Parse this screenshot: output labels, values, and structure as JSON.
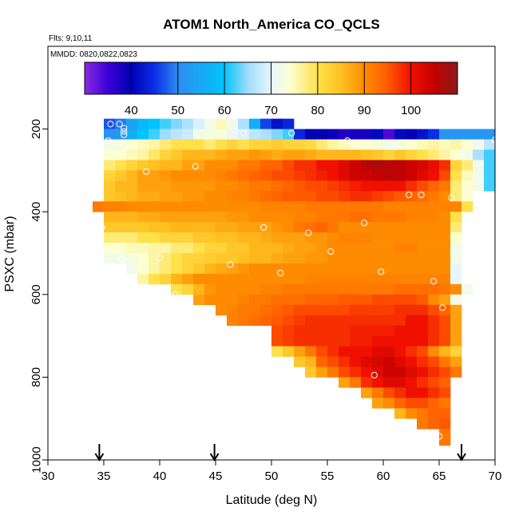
{
  "chart_data": {
    "type": "heatmap",
    "title": "ATOM1 North_America CO_QCLS",
    "flights_note": "Flts: 9,10,11",
    "dates_note": "MMDD: 0820,0822,0823",
    "xlabel": "Latitude (deg N)",
    "ylabel": "PSXC (mbar)",
    "xlim": [
      30,
      70
    ],
    "ylim": [
      1000,
      0
    ],
    "x_ticks": [
      "30",
      "35",
      "40",
      "45",
      "50",
      "55",
      "60",
      "65",
      "70"
    ],
    "y_ticks": [
      "1000",
      "800",
      "600",
      "400",
      "200"
    ],
    "colorbar": {
      "range": [
        30,
        110
      ],
      "ticks": [
        "40",
        "50",
        "60",
        "70",
        "80",
        "90",
        "100"
      ],
      "stops": [
        {
          "value": 30,
          "color": "#8a2be2"
        },
        {
          "value": 35,
          "color": "#3a00d6"
        },
        {
          "value": 40,
          "color": "#0000b4"
        },
        {
          "value": 45,
          "color": "#0a2ee6"
        },
        {
          "value": 50,
          "color": "#2e8bf0"
        },
        {
          "value": 55,
          "color": "#17a9f5"
        },
        {
          "value": 60,
          "color": "#00c4ff"
        },
        {
          "value": 65,
          "color": "#9fdcff"
        },
        {
          "value": 70,
          "color": "#e8f6ff"
        },
        {
          "value": 74,
          "color": "#fbffd2"
        },
        {
          "value": 80,
          "color": "#ffe14a"
        },
        {
          "value": 85,
          "color": "#ffc022"
        },
        {
          "value": 90,
          "color": "#ff8c00"
        },
        {
          "value": 95,
          "color": "#ff5a00"
        },
        {
          "value": 100,
          "color": "#f01000"
        },
        {
          "value": 105,
          "color": "#c40000"
        },
        {
          "value": 110,
          "color": "#8b1a1a"
        }
      ]
    },
    "lat_bin_width": 1,
    "pressure_bin_height": 25,
    "rows": [
      {
        "p_top": 175,
        "p_bot": 200,
        "lat_start": 35,
        "values": [
          47,
          49,
          54,
          58,
          60,
          62,
          64,
          66,
          69,
          72,
          75,
          72,
          66,
          56,
          46,
          42,
          44
        ]
      },
      {
        "p_top": 200,
        "p_bot": 225,
        "lat_start": 35,
        "values": [
          51,
          52,
          56,
          60,
          62,
          65,
          67,
          68,
          72,
          73,
          73,
          71,
          69,
          67,
          66,
          64,
          62,
          44,
          40,
          40,
          39,
          37,
          38,
          38,
          41,
          34,
          41,
          40,
          42,
          45,
          52,
          52,
          52,
          52,
          52,
          52,
          52,
          52,
          52,
          52
        ]
      },
      {
        "p_top": 225,
        "p_bot": 250,
        "lat_start": 35,
        "values": [
          72,
          73,
          74,
          75,
          76,
          78,
          80,
          80,
          80,
          78,
          80,
          82,
          80,
          82,
          82,
          83,
          82,
          82,
          81,
          78,
          76,
          75,
          74,
          74,
          73,
          72,
          73,
          74,
          75,
          76,
          75,
          76,
          74,
          72,
          67,
          62
        ]
      },
      {
        "p_top": 250,
        "p_bot": 275,
        "lat_start": 35,
        "values": [
          74,
          74,
          75,
          76,
          79,
          82,
          84,
          86,
          86,
          86,
          87,
          88,
          88,
          89,
          88,
          87,
          88,
          88,
          87,
          86,
          86,
          86,
          86,
          85,
          84,
          82,
          84,
          82,
          80,
          78,
          76,
          74,
          72,
          66,
          62
        ]
      },
      {
        "p_top": 275,
        "p_bot": 300,
        "lat_start": 35,
        "values": [
          78,
          80,
          82,
          84,
          85,
          86,
          86,
          88,
          88,
          90,
          90,
          90,
          92,
          92,
          94,
          94,
          96,
          98,
          98,
          100,
          100,
          102,
          104,
          106,
          107,
          106,
          106,
          104,
          103,
          101,
          98,
          82,
          78,
          72,
          62
        ]
      },
      {
        "p_top": 300,
        "p_bot": 325,
        "lat_start": 35,
        "values": [
          82,
          84,
          86,
          88,
          88,
          89,
          90,
          90,
          90,
          90,
          91,
          92,
          93,
          94,
          95,
          96,
          96,
          97,
          98,
          99,
          100,
          102,
          104,
          104,
          105,
          106,
          105,
          104,
          102,
          100,
          96,
          80,
          75,
          72,
          62
        ]
      },
      {
        "p_top": 325,
        "p_bot": 350,
        "lat_start": 35,
        "values": [
          84,
          86,
          86,
          88,
          88,
          88,
          89,
          89,
          89,
          89,
          90,
          90,
          91,
          92,
          92,
          93,
          94,
          95,
          96,
          96,
          97,
          98,
          99,
          100,
          100,
          100,
          100,
          98,
          96,
          94,
          92,
          78,
          74,
          72,
          62
        ]
      },
      {
        "p_top": 350,
        "p_bot": 375,
        "lat_start": 35,
        "values": [
          84,
          85,
          86,
          87,
          87,
          88,
          88,
          89,
          89,
          90,
          90,
          91,
          91,
          92,
          93,
          94,
          95,
          95,
          95,
          96,
          96,
          97,
          98,
          98,
          97,
          96,
          95,
          94,
          93,
          92,
          90,
          78,
          74
        ]
      },
      {
        "p_top": 375,
        "p_bot": 400,
        "lat_start": 34,
        "values": [
          92,
          91,
          91,
          90,
          90,
          90,
          90,
          90,
          90,
          90,
          90,
          90,
          90,
          90,
          90,
          91,
          91,
          91,
          91,
          92,
          92,
          92,
          92,
          92,
          92,
          92,
          91,
          91,
          91,
          91,
          91,
          91,
          91,
          80
        ]
      },
      {
        "p_top": 400,
        "p_bot": 425,
        "lat_start": 35,
        "values": [
          86,
          86,
          86,
          87,
          87,
          88,
          88,
          88,
          88,
          88,
          88,
          89,
          89,
          90,
          90,
          90,
          90,
          91,
          91,
          92,
          92,
          92,
          93,
          93,
          92,
          92,
          92,
          91,
          91,
          91,
          90,
          80
        ]
      },
      {
        "p_top": 425,
        "p_bot": 450,
        "lat_start": 35,
        "values": [
          84,
          84,
          84,
          84,
          85,
          85,
          86,
          86,
          86,
          86,
          87,
          87,
          88,
          88,
          88,
          89,
          90,
          92,
          93,
          94,
          92,
          90,
          90,
          90,
          90,
          90,
          90,
          90,
          90,
          90,
          90,
          78
        ]
      },
      {
        "p_top": 450,
        "p_bot": 475,
        "lat_start": 35,
        "values": [
          78,
          78,
          78,
          80,
          80,
          82,
          82,
          82,
          84,
          84,
          85,
          85,
          86,
          86,
          87,
          88,
          88,
          88,
          89,
          89,
          90,
          91,
          91,
          91,
          90,
          90,
          90,
          90,
          90,
          90,
          90,
          74
        ]
      },
      {
        "p_top": 475,
        "p_bot": 500,
        "lat_start": 35,
        "values": [
          74,
          74,
          75,
          75,
          76,
          76,
          78,
          78,
          80,
          82,
          82,
          84,
          84,
          86,
          86,
          86,
          87,
          88,
          88,
          89,
          90,
          90,
          90,
          90,
          90,
          90,
          91,
          91,
          90,
          90,
          90,
          72
        ]
      },
      {
        "p_top": 500,
        "p_bot": 525,
        "lat_start": 35,
        "values": [
          72,
          72,
          73,
          74,
          76,
          78,
          80,
          82,
          82,
          83,
          84,
          84,
          85,
          86,
          86,
          87,
          88,
          88,
          89,
          89,
          90,
          90,
          90,
          90,
          90,
          90,
          90,
          90,
          90,
          90,
          90,
          72
        ]
      },
      {
        "p_top": 525,
        "p_bot": 550,
        "lat_start": 37,
        "values": [
          72,
          74,
          76,
          78,
          80,
          82,
          84,
          86,
          87,
          88,
          89,
          90,
          90,
          90,
          90,
          90,
          90,
          90,
          90,
          90,
          90,
          90,
          90,
          90,
          90,
          90,
          90,
          90,
          90,
          70
        ]
      },
      {
        "p_top": 550,
        "p_bot": 575,
        "lat_start": 38,
        "values": [
          76,
          80,
          82,
          86,
          88,
          90,
          90,
          90,
          90,
          90,
          90,
          90,
          90,
          90,
          90,
          91,
          91,
          91,
          91,
          91,
          91,
          91,
          91,
          91,
          91,
          91,
          91,
          91,
          70
        ]
      },
      {
        "p_top": 575,
        "p_bot": 600,
        "lat_start": 41,
        "values": [
          80,
          82,
          86,
          89,
          90,
          90,
          90,
          90,
          91,
          91,
          92,
          92,
          92,
          92,
          92,
          92,
          92,
          92,
          92,
          92,
          93,
          93,
          93,
          93,
          92,
          90,
          72
        ]
      },
      {
        "p_top": 600,
        "p_bot": 625,
        "lat_start": 43,
        "values": [
          88,
          90,
          90,
          90,
          91,
          92,
          92,
          93,
          93,
          93,
          94,
          94,
          94,
          95,
          95,
          95,
          96,
          96,
          96,
          96,
          95,
          90,
          88,
          72
        ]
      },
      {
        "p_top": 625,
        "p_bot": 650,
        "lat_start": 45,
        "values": [
          90,
          91,
          92,
          92,
          93,
          94,
          95,
          96,
          96,
          96,
          96,
          96,
          97,
          97,
          97,
          97,
          98,
          98,
          98,
          96,
          94,
          88
        ]
      },
      {
        "p_top": 650,
        "p_bot": 675,
        "lat_start": 46,
        "values": [
          91,
          92,
          93,
          94,
          95,
          96,
          97,
          98,
          98,
          98,
          98,
          98,
          98,
          98,
          98,
          98,
          100,
          100,
          98,
          96,
          88
        ]
      },
      {
        "p_top": 675,
        "p_bot": 700,
        "lat_start": 50,
        "values": [
          96,
          97,
          98,
          98,
          98,
          98,
          98,
          99,
          99,
          99,
          99,
          100,
          100,
          100,
          98,
          96,
          88
        ]
      },
      {
        "p_top": 700,
        "p_bot": 725,
        "lat_start": 50,
        "values": [
          96,
          97,
          98,
          98,
          98,
          98,
          98,
          99,
          99,
          100,
          100,
          100,
          100,
          100,
          98,
          96,
          88
        ]
      },
      {
        "p_top": 725,
        "p_bot": 750,
        "lat_start": 50,
        "values": [
          80,
          84,
          88,
          92,
          96,
          98,
          100,
          100,
          100,
          102,
          102,
          100,
          98,
          96,
          90,
          86,
          82
        ]
      },
      {
        "p_top": 750,
        "p_bot": 775,
        "lat_start": 52,
        "values": [
          84,
          86,
          94,
          96,
          98,
          100,
          102,
          103,
          104,
          102,
          100,
          98,
          96,
          92,
          88
        ]
      },
      {
        "p_top": 775,
        "p_bot": 800,
        "lat_start": 53,
        "values": [
          84,
          88,
          92,
          96,
          98,
          100,
          102,
          104,
          104,
          102,
          100,
          98,
          96,
          92
        ]
      },
      {
        "p_top": 800,
        "p_bot": 825,
        "lat_start": 56,
        "values": [
          88,
          92,
          98,
          100,
          102,
          102,
          100,
          98,
          96,
          94
        ]
      },
      {
        "p_top": 825,
        "p_bot": 850,
        "lat_start": 58,
        "values": [
          88,
          92,
          96,
          98,
          100,
          100,
          98,
          96
        ]
      },
      {
        "p_top": 850,
        "p_bot": 875,
        "lat_start": 59,
        "values": [
          88,
          90,
          94,
          96,
          96,
          94,
          92
        ]
      },
      {
        "p_top": 875,
        "p_bot": 900,
        "lat_start": 61,
        "values": [
          86,
          90,
          92,
          94,
          94
        ]
      },
      {
        "p_top": 900,
        "p_bot": 925,
        "lat_start": 63,
        "values": [
          92,
          94,
          95
        ]
      },
      {
        "p_top": 925,
        "p_bot": 950,
        "lat_start": 65,
        "values": [
          92
        ]
      },
      {
        "p_top": 950,
        "p_bot": 965,
        "lat_start": 65,
        "values": [
          92
        ]
      }
    ],
    "points": [
      {
        "lat": 35.6,
        "p": 188
      },
      {
        "lat": 36.4,
        "p": 188
      },
      {
        "lat": 36.8,
        "p": 198
      },
      {
        "lat": 36.8,
        "p": 206
      },
      {
        "lat": 36.8,
        "p": 214
      },
      {
        "lat": 35.4,
        "p": 228
      },
      {
        "lat": 47.5,
        "p": 210
      },
      {
        "lat": 51.8,
        "p": 210
      },
      {
        "lat": 56.8,
        "p": 228
      },
      {
        "lat": 61.1,
        "p": 243
      },
      {
        "lat": 70.0,
        "p": 226
      },
      {
        "lat": 43.2,
        "p": 290
      },
      {
        "lat": 38.8,
        "p": 303
      },
      {
        "lat": 62.3,
        "p": 359
      },
      {
        "lat": 63.4,
        "p": 359
      },
      {
        "lat": 66.1,
        "p": 366
      },
      {
        "lat": 34.8,
        "p": 438
      },
      {
        "lat": 58.3,
        "p": 427
      },
      {
        "lat": 49.3,
        "p": 438
      },
      {
        "lat": 53.3,
        "p": 451
      },
      {
        "lat": 55.3,
        "p": 496
      },
      {
        "lat": 36.6,
        "p": 514
      },
      {
        "lat": 40.0,
        "p": 512
      },
      {
        "lat": 46.3,
        "p": 528
      },
      {
        "lat": 50.8,
        "p": 548
      },
      {
        "lat": 59.8,
        "p": 545
      },
      {
        "lat": 64.5,
        "p": 568
      },
      {
        "lat": 41.4,
        "p": 600
      },
      {
        "lat": 65.3,
        "p": 632
      },
      {
        "lat": 59.2,
        "p": 795
      },
      {
        "lat": 65.0,
        "p": 943
      }
    ],
    "arrows_lat": [
      34.6,
      44.9,
      67.0
    ]
  }
}
